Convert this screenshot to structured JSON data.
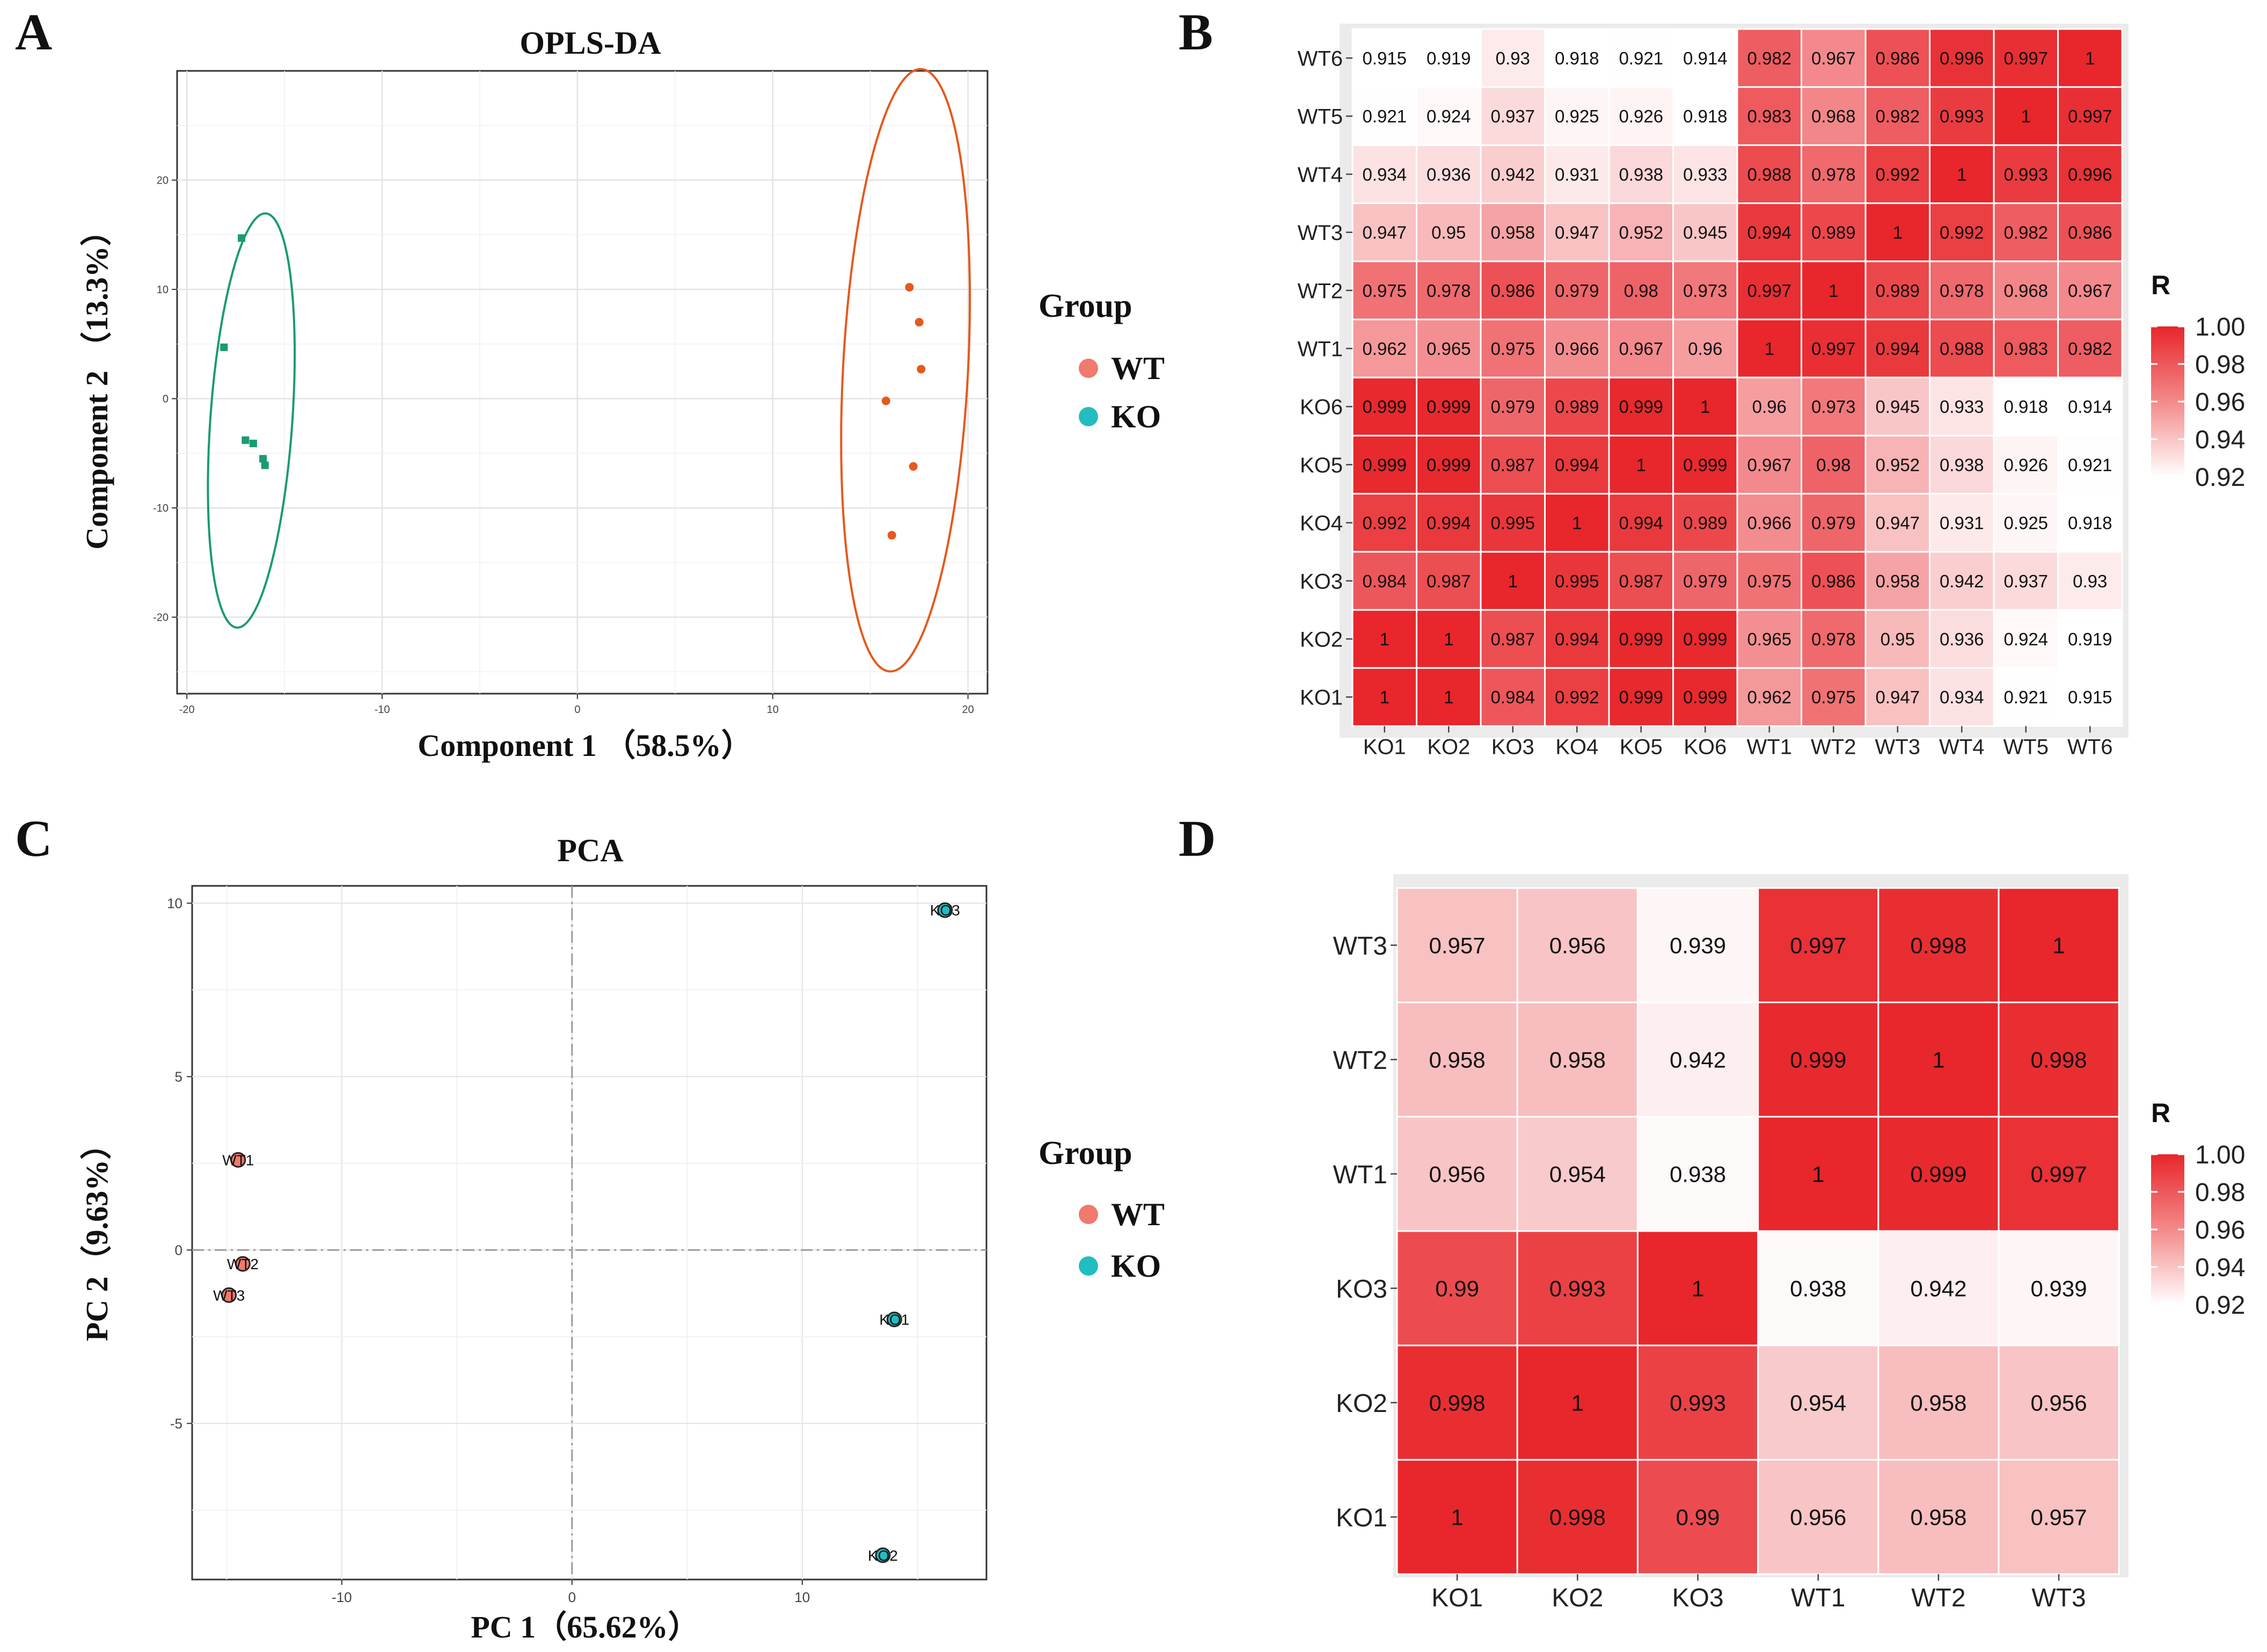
{
  "panels": {
    "A": {
      "letter": "A",
      "chart_data": {
        "type": "scatter",
        "title": "OPLS-DA",
        "xlabel": "Component 1 （58.5%）",
        "ylabel": "Component 2 （13.3%）",
        "xlim": [
          -20.5,
          21
        ],
        "ylim": [
          -27,
          30
        ],
        "xticks": [
          -20,
          -10,
          0,
          10,
          20
        ],
        "yticks": [
          -20,
          -10,
          0,
          10,
          20
        ],
        "series": [
          {
            "name": "KO",
            "color": "#1a9a74",
            "points": [
              [
                -17.2,
                14.7
              ],
              [
                -18.1,
                4.7
              ],
              [
                -17.0,
                -3.8
              ],
              [
                -16.6,
                -4.1
              ],
              [
                -16.1,
                -5.5
              ],
              [
                -16.0,
                -6.1
              ]
            ],
            "ellipse": {
              "cx": -16.7,
              "cy": -2.0,
              "rx": 2.1,
              "ry": 19.0,
              "angle_deg": 4
            }
          },
          {
            "name": "WT",
            "color": "#e4591c",
            "points": [
              [
                17.0,
                10.2
              ],
              [
                17.5,
                7.0
              ],
              [
                17.6,
                2.7
              ],
              [
                15.8,
                -0.2
              ],
              [
                17.2,
                -6.2
              ],
              [
                16.1,
                -12.5
              ]
            ],
            "ellipse": {
              "cx": 16.8,
              "cy": 2.6,
              "rx": 3.2,
              "ry": 27.6,
              "angle_deg": 3
            }
          }
        ]
      },
      "legend": {
        "title": "Group",
        "items": [
          {
            "label": "WT",
            "color": "#f07a6b"
          },
          {
            "label": "KO",
            "color": "#22bdc1"
          }
        ]
      }
    },
    "B": {
      "letter": "B",
      "chart_data": {
        "type": "heatmap",
        "title": "",
        "row_labels": [
          "WT6",
          "WT5",
          "WT4",
          "WT3",
          "WT2",
          "WT1",
          "KO6",
          "KO5",
          "KO4",
          "KO3",
          "KO2",
          "KO1"
        ],
        "col_labels": [
          "KO1",
          "KO2",
          "KO3",
          "KO4",
          "KO5",
          "KO6",
          "WT1",
          "WT2",
          "WT3",
          "WT4",
          "WT5",
          "WT6"
        ],
        "values": [
          [
            0.915,
            0.919,
            0.93,
            0.918,
            0.921,
            0.914,
            0.982,
            0.967,
            0.986,
            0.996,
            0.997,
            1
          ],
          [
            0.921,
            0.924,
            0.937,
            0.925,
            0.926,
            0.918,
            0.983,
            0.968,
            0.982,
            0.993,
            1,
            0.997
          ],
          [
            0.934,
            0.936,
            0.942,
            0.931,
            0.938,
            0.933,
            0.988,
            0.978,
            0.992,
            1,
            0.993,
            0.996
          ],
          [
            0.947,
            0.95,
            0.958,
            0.947,
            0.952,
            0.945,
            0.994,
            0.989,
            1,
            0.992,
            0.982,
            0.986
          ],
          [
            0.975,
            0.978,
            0.986,
            0.979,
            0.98,
            0.973,
            0.997,
            1,
            0.989,
            0.978,
            0.968,
            0.967
          ],
          [
            0.962,
            0.965,
            0.975,
            0.966,
            0.967,
            0.96,
            1,
            0.997,
            0.994,
            0.988,
            0.983,
            0.982
          ],
          [
            0.999,
            0.999,
            0.979,
            0.989,
            0.999,
            1,
            0.96,
            0.973,
            0.945,
            0.933,
            0.918,
            0.914
          ],
          [
            0.999,
            0.999,
            0.987,
            0.994,
            1,
            0.999,
            0.967,
            0.98,
            0.952,
            0.938,
            0.926,
            0.921
          ],
          [
            0.992,
            0.994,
            0.995,
            1,
            0.994,
            0.989,
            0.966,
            0.979,
            0.947,
            0.931,
            0.925,
            0.918
          ],
          [
            0.984,
            0.987,
            1,
            0.995,
            0.987,
            0.979,
            0.975,
            0.986,
            0.958,
            0.942,
            0.937,
            0.93
          ],
          [
            1,
            1,
            0.987,
            0.994,
            0.999,
            0.999,
            0.965,
            0.978,
            0.95,
            0.936,
            0.924,
            0.919
          ],
          [
            1,
            1,
            0.984,
            0.992,
            0.999,
            0.999,
            0.962,
            0.975,
            0.947,
            0.934,
            0.921,
            0.915
          ]
        ],
        "value_labels": [
          [
            "0.915",
            "0.919",
            "0.93",
            "0.918",
            "0.921",
            "0.914",
            "0.982",
            "0.967",
            "0.986",
            "0.996",
            "0.997",
            "1"
          ],
          [
            "0.921",
            "0.924",
            "0.937",
            "0.925",
            "0.926",
            "0.918",
            "0.983",
            "0.968",
            "0.982",
            "0.993",
            "1",
            "0.997"
          ],
          [
            "0.934",
            "0.936",
            "0.942",
            "0.931",
            "0.938",
            "0.933",
            "0.988",
            "0.978",
            "0.992",
            "1",
            "0.993",
            "0.996"
          ],
          [
            "0.947",
            "0.95",
            "0.958",
            "0.947",
            "0.952",
            "0.945",
            "0.994",
            "0.989",
            "1",
            "0.992",
            "0.982",
            "0.986"
          ],
          [
            "0.975",
            "0.978",
            "0.986",
            "0.979",
            "0.98",
            "0.973",
            "0.997",
            "1",
            "0.989",
            "0.978",
            "0.968",
            "0.967"
          ],
          [
            "0.962",
            "0.965",
            "0.975",
            "0.966",
            "0.967",
            "0.96",
            "1",
            "0.997",
            "0.994",
            "0.988",
            "0.983",
            "0.982"
          ],
          [
            "0.999",
            "0.999",
            "0.979",
            "0.989",
            "0.999",
            "1",
            "0.96",
            "0.973",
            "0.945",
            "0.933",
            "0.918",
            "0.914"
          ],
          [
            "0.999",
            "0.999",
            "0.987",
            "0.994",
            "1",
            "0.999",
            "0.967",
            "0.98",
            "0.952",
            "0.938",
            "0.926",
            "0.921"
          ],
          [
            "0.992",
            "0.994",
            "0.995",
            "1",
            "0.994",
            "0.989",
            "0.966",
            "0.979",
            "0.947",
            "0.931",
            "0.925",
            "0.918"
          ],
          [
            "0.984",
            "0.987",
            "1",
            "0.995",
            "0.987",
            "0.979",
            "0.975",
            "0.986",
            "0.958",
            "0.942",
            "0.937",
            "0.93"
          ],
          [
            "1",
            "1",
            "0.987",
            "0.994",
            "0.999",
            "0.999",
            "0.965",
            "0.978",
            "0.95",
            "0.936",
            "0.924",
            "0.919"
          ],
          [
            "1",
            "1",
            "0.984",
            "0.992",
            "0.999",
            "0.999",
            "0.962",
            "0.975",
            "0.947",
            "0.934",
            "0.921",
            "0.915"
          ]
        ],
        "color_scale": {
          "min": 0.92,
          "max": 1.0,
          "low_color": "#ffffff",
          "high_color": "#e8262b"
        },
        "colorbar": {
          "title": "R",
          "ticks": [
            "1.00",
            "0.98",
            "0.96",
            "0.94",
            "0.92"
          ],
          "tick_values": [
            1.0,
            0.98,
            0.96,
            0.94,
            0.92
          ]
        }
      }
    },
    "C": {
      "letter": "C",
      "chart_data": {
        "type": "scatter",
        "title": "PCA",
        "xlabel": "PC 1（65.62%）",
        "ylabel": "PC 2（9.63%）",
        "xlim": [
          -16.5,
          18
        ],
        "ylim": [
          -9.5,
          10.5
        ],
        "xticks": [
          -10,
          0,
          10
        ],
        "yticks": [
          -5,
          0,
          5,
          10
        ],
        "reference_lines": {
          "x": 0,
          "y": 0
        },
        "series": [
          {
            "name": "WT",
            "color": "#f07a6b",
            "points": [
              {
                "x": -14.5,
                "y": 2.6,
                "label": "WT1"
              },
              {
                "x": -14.3,
                "y": -0.4,
                "label": "WT2"
              },
              {
                "x": -14.9,
                "y": -1.3,
                "label": "WT3"
              }
            ]
          },
          {
            "name": "KO",
            "color": "#22bdc1",
            "points": [
              {
                "x": 16.2,
                "y": 9.8,
                "label": "KO3"
              },
              {
                "x": 14.0,
                "y": -2.0,
                "label": "KO1"
              },
              {
                "x": 13.5,
                "y": -8.8,
                "label": "KO2"
              }
            ]
          }
        ]
      },
      "legend": {
        "title": "Group",
        "items": [
          {
            "label": "WT",
            "color": "#f07a6b"
          },
          {
            "label": "KO",
            "color": "#22bdc1"
          }
        ]
      }
    },
    "D": {
      "letter": "D",
      "chart_data": {
        "type": "heatmap",
        "title": "",
        "row_labels": [
          "WT3",
          "WT2",
          "WT1",
          "KO3",
          "KO2",
          "KO1"
        ],
        "col_labels": [
          "KO1",
          "KO2",
          "KO3",
          "WT1",
          "WT2",
          "WT3"
        ],
        "values": [
          [
            0.957,
            0.956,
            0.939,
            0.997,
            0.998,
            1
          ],
          [
            0.958,
            0.958,
            0.942,
            0.999,
            1,
            0.998
          ],
          [
            0.956,
            0.954,
            0.938,
            1,
            0.999,
            0.997
          ],
          [
            0.99,
            0.993,
            1,
            0.938,
            0.942,
            0.939
          ],
          [
            0.998,
            1,
            0.993,
            0.954,
            0.958,
            0.956
          ],
          [
            1,
            0.998,
            0.99,
            0.956,
            0.958,
            0.957
          ]
        ],
        "value_labels": [
          [
            "0.957",
            "0.956",
            "0.939",
            "0.997",
            "0.998",
            "1"
          ],
          [
            "0.958",
            "0.958",
            "0.942",
            "0.999",
            "1",
            "0.998"
          ],
          [
            "0.956",
            "0.954",
            "0.938",
            "1",
            "0.999",
            "0.997"
          ],
          [
            "0.99",
            "0.993",
            "1",
            "0.938",
            "0.942",
            "0.939"
          ],
          [
            "0.998",
            "1",
            "0.993",
            "0.954",
            "0.958",
            "0.956"
          ],
          [
            "1",
            "0.998",
            "0.99",
            "0.956",
            "0.958",
            "0.957"
          ]
        ],
        "color_scale": {
          "min": 0.935,
          "max": 1.0,
          "low_color": "#ffffff",
          "high_color": "#e8262b"
        },
        "colorbar": {
          "title": "R",
          "ticks": [
            "1.00",
            "0.98",
            "0.96",
            "0.94",
            "0.92"
          ],
          "tick_values": [
            1.0,
            0.98,
            0.96,
            0.94,
            0.92
          ]
        }
      }
    }
  }
}
